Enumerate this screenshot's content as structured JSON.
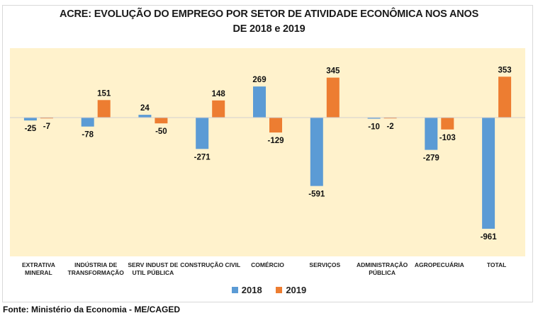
{
  "chart_data": {
    "type": "bar",
    "title": "ACRE: EVOLUÇÃO DO EMPREGO POR SETOR DE ATIVIDADE ECONÔMICA NOS ANOS DE 2018 e 2019",
    "title_lines": [
      "ACRE: EVOLUÇÃO DO EMPREGO POR SETOR DE ATIVIDADE ECONÔMICA NOS ANOS",
      "DE 2018 e 2019"
    ],
    "xlabel": "",
    "ylabel": "",
    "categories": [
      [
        "EXTRATIVA",
        "MINERAL"
      ],
      [
        "INDÚSTRIA DE",
        "TRANSFORMAÇÃO"
      ],
      [
        "SERV INDUST DE",
        "UTIL PÚBLICA"
      ],
      [
        "CONSTRUÇÃO CIVIL"
      ],
      [
        "COMÉRCIO"
      ],
      [
        "SERVIÇOS"
      ],
      [
        "ADMINISTRAÇÃO",
        "PÚBLICA"
      ],
      [
        "AGROPECUÁRIA"
      ],
      [
        "TOTAL"
      ]
    ],
    "series": [
      {
        "name": "2018",
        "color": "#5b9bd5",
        "values": [
          -25,
          -78,
          24,
          -271,
          269,
          -591,
          -10,
          -279,
          -961
        ]
      },
      {
        "name": "2019",
        "color": "#ed7d31",
        "values": [
          -7,
          151,
          -50,
          148,
          -129,
          345,
          -2,
          -103,
          353
        ]
      }
    ],
    "ylim": [
      -1100,
      600
    ],
    "grid": false,
    "y_axis_visible": false,
    "data_labels": true,
    "legend": "bottom",
    "plot_background": "#fff2cc"
  },
  "source": "Fonte: Ministério da Economia - ME/CAGED"
}
